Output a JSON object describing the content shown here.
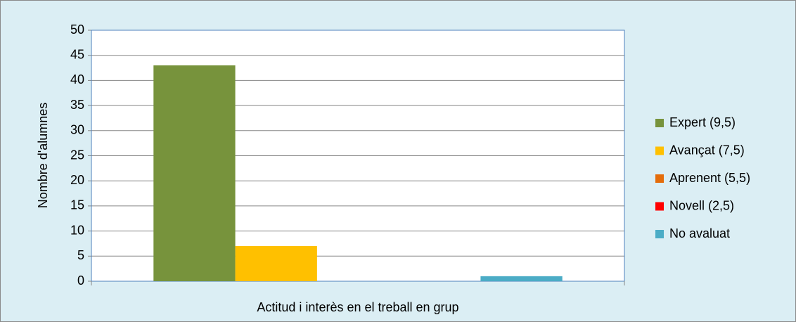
{
  "chart_data": {
    "type": "bar",
    "categories": [
      "Actitud i interès en el treball en grup"
    ],
    "y_label": "Nombre d'alumnes",
    "series": [
      {
        "name": "Expert (9,5)",
        "color": "#77933c",
        "values": [
          43
        ]
      },
      {
        "name": "Avançat (7,5)",
        "color": "#ffc000",
        "values": [
          7
        ]
      },
      {
        "name": "Aprenent (5,5)",
        "color": "#e46c0a",
        "values": [
          0
        ]
      },
      {
        "name": "Novell (2,5)",
        "color": "#ff0000",
        "values": [
          0
        ]
      },
      {
        "name": "No avaluat",
        "color": "#4bacc6",
        "values": [
          1
        ]
      }
    ],
    "ylim": [
      0,
      50
    ],
    "yticks": [
      0,
      5,
      10,
      15,
      20,
      25,
      30,
      35,
      40,
      45,
      50
    ],
    "grid": true,
    "legend": "right"
  }
}
